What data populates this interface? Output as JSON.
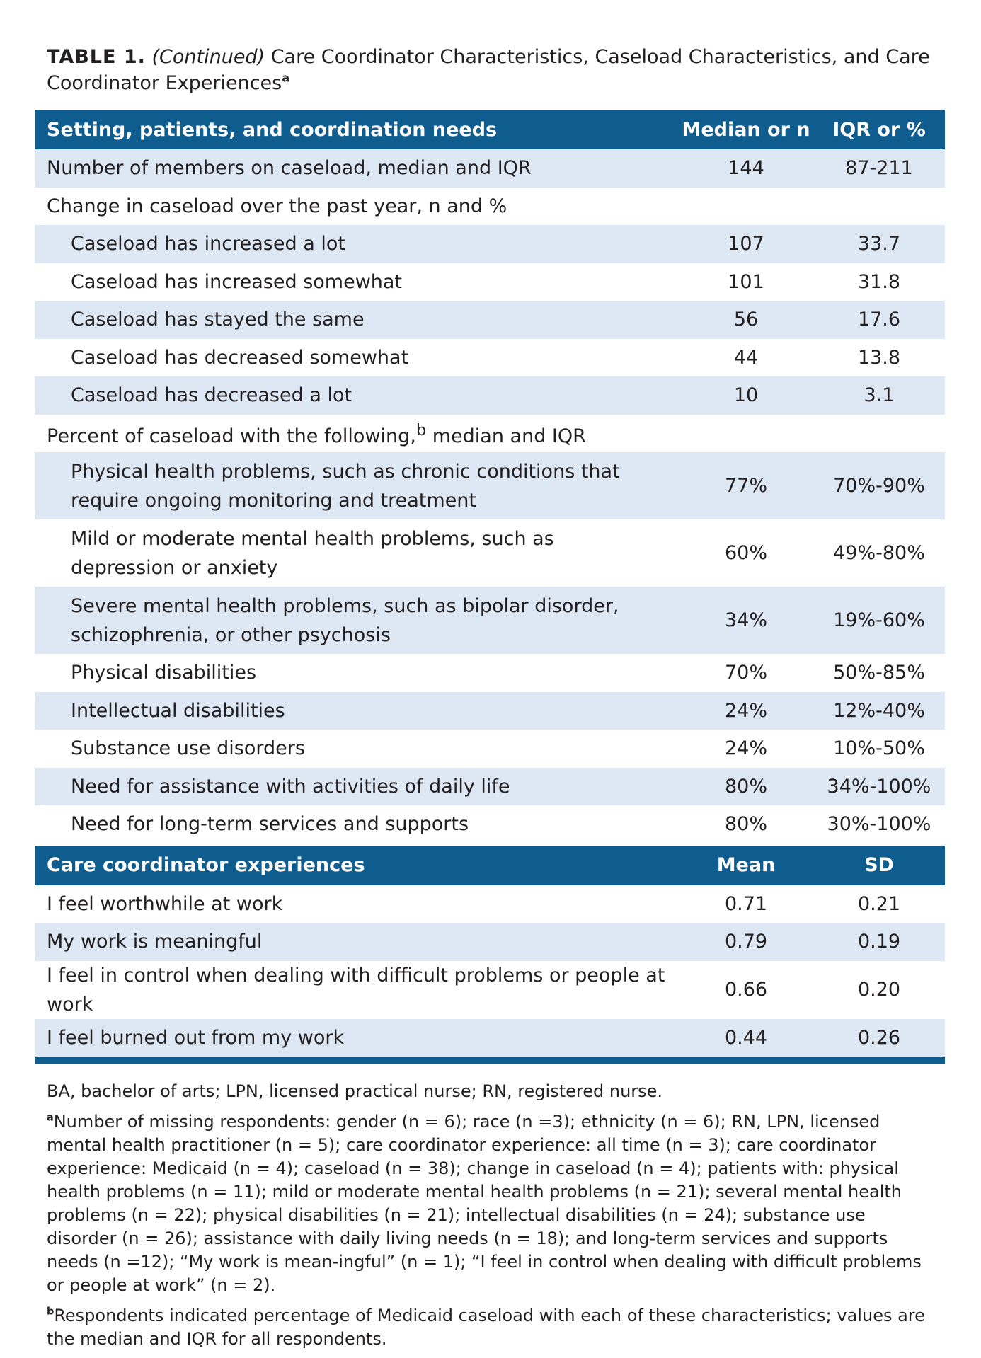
{
  "caption": {
    "label": "TABLE 1.",
    "continued": "(Continued)",
    "title": "Care Coordinator Characteristics, Caseload Characteristics, and Care Coordinator Experiences",
    "sup": "a"
  },
  "section1": {
    "header": {
      "col1": "Setting, patients, and coordination needs",
      "col2": "Median or n",
      "col3": "IQR or %"
    },
    "rows": [
      {
        "label": "Number of members on caseload, median and IQR",
        "v1": "144",
        "v2": "87-211"
      },
      {
        "label": "Change in caseload over the past year, n and %",
        "v1": "",
        "v2": ""
      },
      {
        "label": "Caseload has increased a lot",
        "v1": "107",
        "v2": "33.7"
      },
      {
        "label": "Caseload has increased somewhat",
        "v1": "101",
        "v2": "31.8"
      },
      {
        "label": "Caseload has stayed the same",
        "v1": "56",
        "v2": "17.6"
      },
      {
        "label": "Caseload has decreased somewhat",
        "v1": "44",
        "v2": "13.8"
      },
      {
        "label": "Caseload has decreased a lot",
        "v1": "10",
        "v2": "3.1"
      },
      {
        "label_pre": "Percent of caseload with the following,",
        "label_sup": "b",
        "label_post": " median and IQR",
        "v1": "",
        "v2": ""
      },
      {
        "label": "Physical health problems, such as chronic conditions that require ongoing monitoring and treatment",
        "v1": "77%",
        "v2": "70%-90%"
      },
      {
        "label": "Mild or moderate mental health problems, such as depression or anxiety",
        "v1": "60%",
        "v2": "49%-80%"
      },
      {
        "label": "Severe mental health problems, such as bipolar disorder, schizophrenia, or other psychosis",
        "v1": "34%",
        "v2": "19%-60%"
      },
      {
        "label": "Physical disabilities",
        "v1": "70%",
        "v2": "50%-85%"
      },
      {
        "label": "Intellectual disabilities",
        "v1": "24%",
        "v2": "12%-40%"
      },
      {
        "label": "Substance use disorders",
        "v1": "24%",
        "v2": "10%-50%"
      },
      {
        "label": "Need for assistance with activities of daily life",
        "v1": "80%",
        "v2": "34%-100%"
      },
      {
        "label": "Need for long-term services and supports",
        "v1": "80%",
        "v2": "30%-100%"
      }
    ]
  },
  "section2": {
    "header": {
      "col1": "Care coordinator experiences",
      "col2": "Mean",
      "col3": "SD"
    },
    "rows": [
      {
        "label": "I feel worthwhile at work",
        "v1": "0.71",
        "v2": "0.21"
      },
      {
        "label": "My work is meaningful",
        "v1": "0.79",
        "v2": "0.19"
      },
      {
        "label": "I feel in control when dealing with difficult problems or people at work",
        "v1": "0.66",
        "v2": "0.20"
      },
      {
        "label": "I feel burned out from my work",
        "v1": "0.44",
        "v2": "0.26"
      }
    ]
  },
  "footnotes": {
    "abbrev": "BA, bachelor of arts; LPN, licensed practical nurse; RN, registered nurse.",
    "a_sup": "a",
    "a_text": "Number of missing respondents: gender (n = 6); race (n =3); ethnicity (n = 6); RN, LPN, licensed mental health practitioner (n = 5); care coordinator experience: all time (n = 3); care coordinator experience: Medicaid (n = 4); caseload (n = 38); change in caseload (n = 4); patients with: physical health problems (n = 11); mild or moderate mental health problems (n = 21); several mental health problems (n = 22); physical disabilities (n = 21); intellectual disabilities (n = 24); substance use disorder (n = 26); assistance with daily living needs (n = 18); and long-term services and supports needs (n =12); “My work is mean-ingful” (n = 1); “I feel in control when dealing with difficult problems or people at work” (n = 2).",
    "b_sup": "b",
    "b_text": "Respondents indicated percentage of Medicaid caseload with each of these characteristics; values are the median and IQR for all respondents."
  },
  "colors": {
    "header_bg": "#0f5d8e",
    "row_shade": "#dde8f4",
    "text": "#231f20"
  }
}
